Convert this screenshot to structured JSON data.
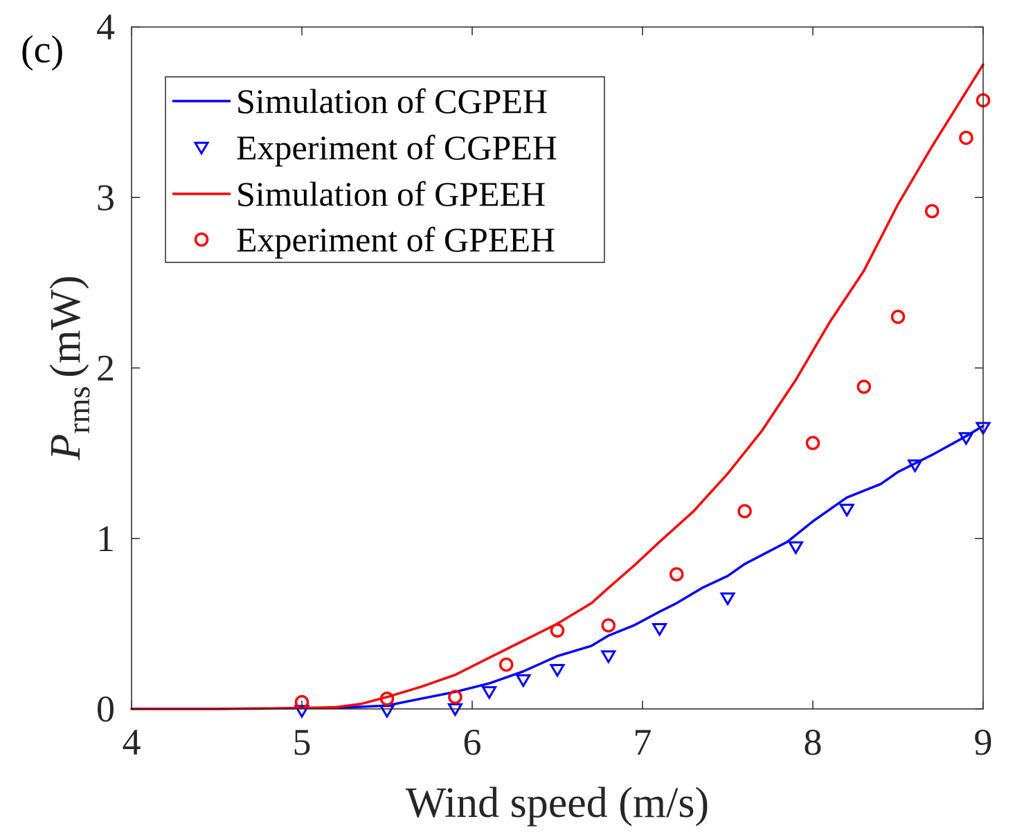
{
  "chart_data": {
    "type": "line",
    "panel_label": "(c)",
    "xlabel": "Wind speed (m/s)",
    "ylabel": {
      "symbol": "P",
      "subscript": "rms",
      "unit": "(mW)"
    },
    "xlim": [
      4,
      9
    ],
    "ylim": [
      0,
      4
    ],
    "xticks": [
      4,
      5,
      6,
      7,
      8,
      9
    ],
    "yticks": [
      0,
      1,
      2,
      3,
      4
    ],
    "grid": false,
    "legend_position": "top-left",
    "colors": {
      "blue": "#0000ff",
      "red": "#ff0000",
      "axis": "#262626"
    },
    "series": [
      {
        "name": "Simulation of CGPEH",
        "kind": "line",
        "color": "#0000ff",
        "x": [
          4.0,
          4.5,
          5.0,
          5.3,
          5.5,
          5.7,
          5.9,
          6.1,
          6.3,
          6.5,
          6.7,
          6.8,
          6.95,
          7.1,
          7.2,
          7.35,
          7.5,
          7.6,
          7.85,
          8.0,
          8.2,
          8.4,
          8.5,
          8.7,
          8.9,
          9.0
        ],
        "y": [
          0.0,
          0.0,
          0.005,
          0.01,
          0.02,
          0.06,
          0.1,
          0.15,
          0.22,
          0.31,
          0.37,
          0.43,
          0.49,
          0.57,
          0.62,
          0.71,
          0.78,
          0.85,
          0.98,
          1.1,
          1.24,
          1.32,
          1.39,
          1.49,
          1.6,
          1.66
        ]
      },
      {
        "name": "Experiment of CGPEH",
        "kind": "marker",
        "marker": "triangle-down",
        "color": "#0000ff",
        "x": [
          5.0,
          5.5,
          5.9,
          6.1,
          6.3,
          6.5,
          6.8,
          7.1,
          7.5,
          7.9,
          8.2,
          8.6,
          8.9,
          9.0
        ],
        "y": [
          -0.01,
          -0.01,
          0.0,
          0.1,
          0.17,
          0.23,
          0.31,
          0.47,
          0.65,
          0.95,
          1.17,
          1.43,
          1.59,
          1.65
        ]
      },
      {
        "name": "Simulation of GPEEH",
        "kind": "line",
        "color": "#ff0000",
        "x": [
          4.0,
          4.5,
          5.0,
          5.2,
          5.35,
          5.5,
          5.7,
          5.9,
          6.1,
          6.3,
          6.5,
          6.7,
          6.8,
          6.95,
          7.1,
          7.3,
          7.5,
          7.7,
          7.9,
          8.1,
          8.3,
          8.5,
          8.7,
          8.9,
          9.0
        ],
        "y": [
          0.0,
          0.0,
          0.005,
          0.01,
          0.03,
          0.07,
          0.13,
          0.2,
          0.3,
          0.4,
          0.5,
          0.62,
          0.71,
          0.84,
          0.98,
          1.16,
          1.38,
          1.63,
          1.93,
          2.27,
          2.57,
          2.96,
          3.3,
          3.62,
          3.78
        ]
      },
      {
        "name": "Experiment of GPEEH",
        "kind": "marker",
        "marker": "circle",
        "color": "#ff0000",
        "x": [
          5.0,
          5.5,
          5.9,
          6.2,
          6.5,
          6.8,
          7.2,
          7.6,
          8.0,
          8.3,
          8.5,
          8.7,
          8.9,
          9.0
        ],
        "y": [
          0.04,
          0.06,
          0.07,
          0.26,
          0.46,
          0.49,
          0.79,
          1.16,
          1.56,
          1.89,
          2.3,
          2.92,
          3.35,
          3.57
        ]
      }
    ]
  }
}
